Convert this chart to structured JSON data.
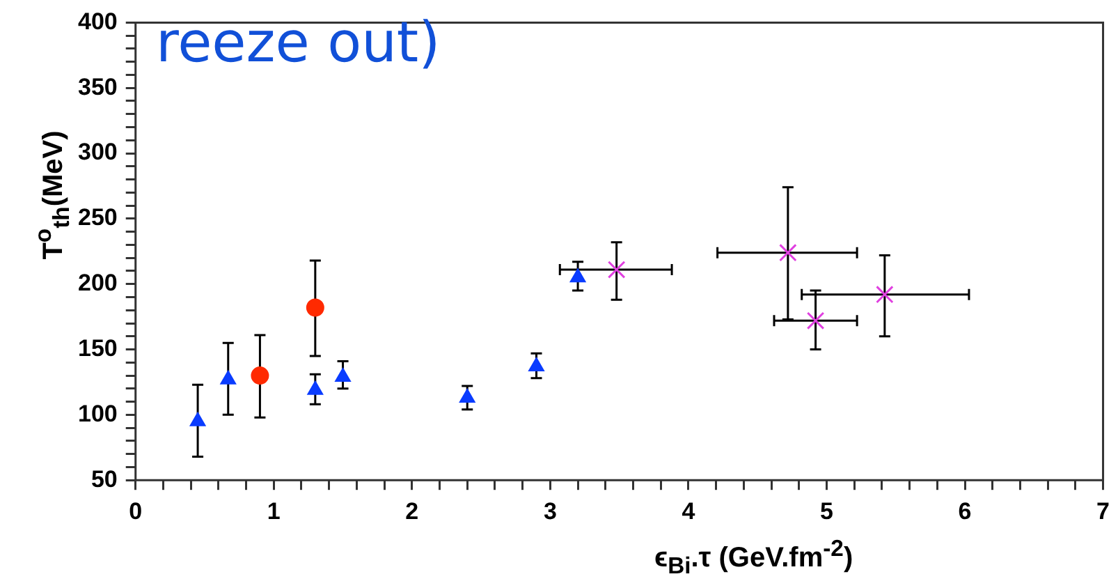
{
  "chart_data": {
    "type": "scatter",
    "xlabel": "ϵ$_{Bi}$.τ (GeV.fm$^{-2}$)",
    "ylabel": "T$^{o}$$_{th}$(MeV)",
    "annotations": [
      "reeze out)"
    ],
    "xlim": [
      0,
      7
    ],
    "ylim": [
      50,
      400
    ],
    "xticks": [
      0,
      {
        "value": 0.2,
        "label": null
      },
      {
        "value": 0.4,
        "label": null
      },
      {
        "value": 0.6,
        "label": null
      },
      {
        "value": 0.8,
        "label": null
      },
      1,
      {
        "value": 1.2,
        "label": null
      },
      {
        "value": 1.4,
        "label": null
      },
      {
        "value": 1.6,
        "label": null
      },
      {
        "value": 1.8,
        "label": null
      },
      2,
      {
        "value": 2.2,
        "label": null
      },
      {
        "value": 2.4,
        "label": null
      },
      {
        "value": 2.6,
        "label": null
      },
      {
        "value": 2.8,
        "label": null
      },
      3,
      {
        "value": 3.2,
        "label": null
      },
      {
        "value": 3.4,
        "label": null
      },
      {
        "value": 3.6,
        "label": null
      },
      {
        "value": 3.8,
        "label": null
      },
      4,
      {
        "value": 4.2,
        "label": null
      },
      {
        "value": 4.4,
        "label": null
      },
      {
        "value": 4.6,
        "label": null
      },
      {
        "value": 4.8,
        "label": null
      },
      5,
      {
        "value": 5.2,
        "label": null
      },
      {
        "value": 5.4,
        "label": null
      },
      {
        "value": 5.6,
        "label": null
      },
      {
        "value": 5.8,
        "label": null
      },
      6,
      {
        "value": 6.2,
        "label": null
      },
      {
        "value": 6.4,
        "label": null
      },
      {
        "value": 6.6,
        "label": null
      },
      {
        "value": 6.8,
        "label": null
      },
      7
    ],
    "yticks": [
      50,
      {
        "value": 60,
        "label": null
      },
      {
        "value": 70,
        "label": null
      },
      {
        "value": 80,
        "label": null
      },
      {
        "value": 90,
        "label": null
      },
      100,
      {
        "value": 110,
        "label": null
      },
      {
        "value": 120,
        "label": null
      },
      {
        "value": 130,
        "label": null
      },
      {
        "value": 140,
        "label": null
      },
      150,
      {
        "value": 160,
        "label": null
      },
      {
        "value": 170,
        "label": null
      },
      {
        "value": 180,
        "label": null
      },
      {
        "value": 190,
        "label": null
      },
      200,
      {
        "value": 210,
        "label": null
      },
      {
        "value": 220,
        "label": null
      },
      {
        "value": 230,
        "label": null
      },
      {
        "value": 240,
        "label": null
      },
      250,
      {
        "value": 260,
        "label": null
      },
      {
        "value": 270,
        "label": null
      },
      {
        "value": 280,
        "label": null
      },
      {
        "value": 290,
        "label": null
      },
      300,
      {
        "value": 310,
        "label": null
      },
      {
        "value": 320,
        "label": null
      },
      {
        "value": 330,
        "label": null
      },
      {
        "value": 340,
        "label": null
      },
      350,
      {
        "value": 360,
        "label": null
      },
      {
        "value": 370,
        "label": null
      },
      {
        "value": 380,
        "label": null
      },
      {
        "value": 390,
        "label": null
      },
      400
    ],
    "series": [
      {
        "color": "#0a3cff",
        "marker": "triangle",
        "x": [
          0.45,
          0.67,
          1.3,
          1.5,
          2.4,
          2.9,
          3.2
        ],
        "values": [
          95,
          127,
          119,
          129,
          113,
          137,
          205
        ],
        "errors": [
          [
            68,
            123
          ],
          [
            100,
            155
          ],
          [
            108,
            131
          ],
          [
            120,
            141
          ],
          [
            104,
            122
          ],
          [
            128,
            147
          ],
          [
            195,
            217
          ]
        ]
      },
      {
        "color": "#ff2a00",
        "marker": "circle",
        "x": [
          0.9,
          1.3
        ],
        "values": [
          130,
          182
        ],
        "errors": [
          [
            98,
            161
          ],
          [
            145,
            218
          ]
        ]
      },
      {
        "color": "#e040e0",
        "marker": "cross",
        "x": [
          3.48,
          4.72,
          4.92,
          5.42
        ],
        "values": [
          211,
          224,
          172,
          192
        ],
        "errors": [
          [
            188,
            232
          ],
          [
            173,
            274
          ],
          [
            150,
            195
          ],
          [
            160,
            222
          ]
        ],
        "xerrors": [
          [
            3.07,
            3.88
          ],
          [
            4.21,
            5.22
          ],
          [
            4.62,
            5.22
          ],
          [
            4.82,
            6.03
          ]
        ]
      }
    ]
  }
}
